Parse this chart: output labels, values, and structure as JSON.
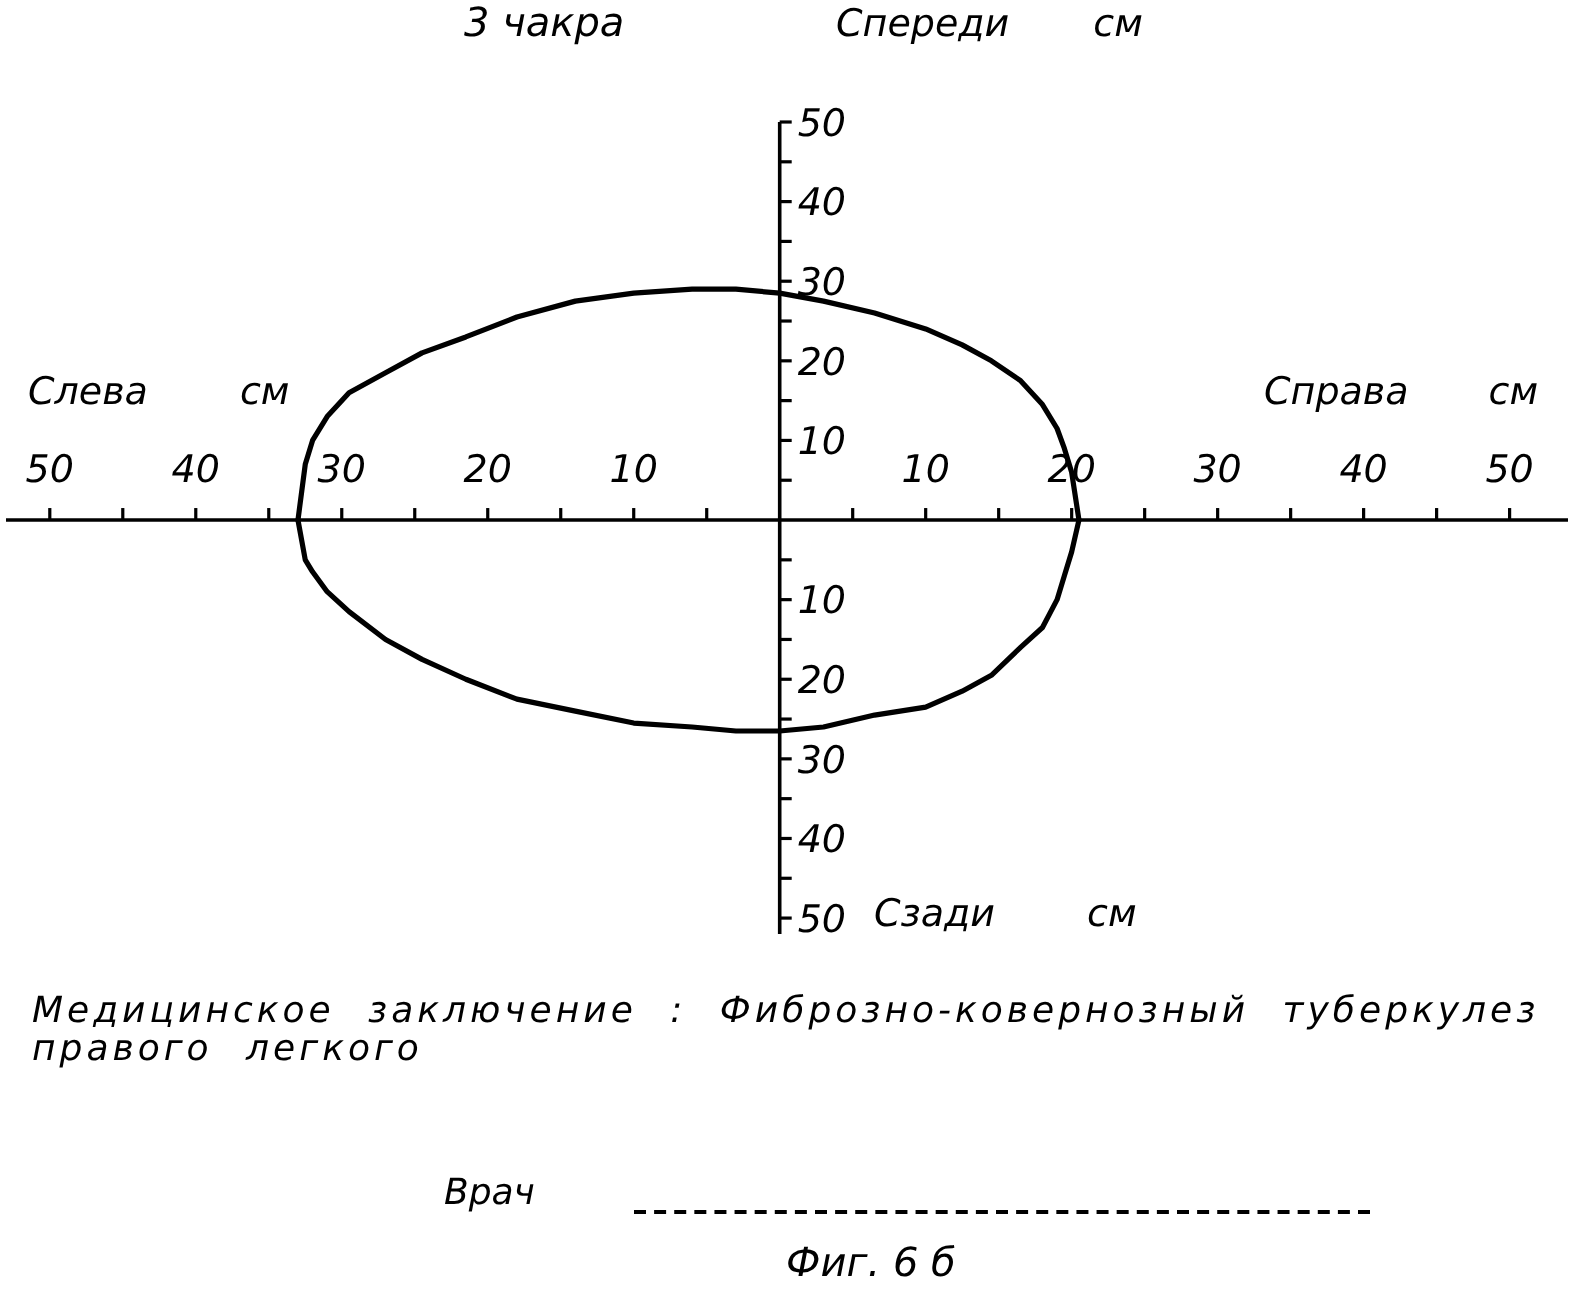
{
  "chart_data": {
    "type": "line",
    "title": "3 чакра",
    "xlabel": "Справа см",
    "ylabel": "Спереди см",
    "annotations": [
      "Слева см",
      "Сзади см",
      "Медицинское заключение : Фиброзно-ковернозный туберкулез правого легкого",
      "Врач",
      "Фиг. 6 б"
    ],
    "x": [
      -33,
      -32.5,
      -32,
      -31,
      -29.5,
      -27,
      -24.5,
      -21.5,
      -18,
      -14,
      -10,
      -6,
      -3,
      0,
      3,
      6.5,
      10,
      12.5,
      14.5,
      16.5,
      18,
      19,
      19.5,
      20,
      20.5
    ],
    "series": [
      {
        "color": "#000000",
        "values": [
          0,
          7,
          10,
          13,
          16,
          18.5,
          21,
          23,
          25.5,
          27.5,
          28.5,
          29,
          29,
          28.5,
          27.5,
          26,
          24,
          22,
          20,
          17.5,
          14.5,
          11.5,
          9,
          6,
          0
        ]
      },
      {
        "color": "#000000",
        "values": [
          0,
          -5,
          -6.5,
          -9,
          -11.5,
          -15,
          -17.5,
          -20,
          -22.5,
          -24,
          -25.5,
          -26,
          -26.5,
          -26.5,
          -26,
          -24.5,
          -23.5,
          -21.5,
          -19.5,
          -16,
          -13.5,
          -10,
          -7,
          -4,
          0
        ]
      }
    ],
    "xlim": [
      -53,
      54
    ],
    "xticks": [
      {
        "value": -50,
        "label": "50"
      },
      {
        "value": -45,
        "label": null
      },
      {
        "value": -40,
        "label": "40"
      },
      {
        "value": -35,
        "label": null
      },
      {
        "value": -30,
        "label": "30"
      },
      {
        "value": -25,
        "label": null
      },
      {
        "value": -20,
        "label": "20"
      },
      {
        "value": -15,
        "label": null
      },
      {
        "value": -10,
        "label": "10"
      },
      {
        "value": -5,
        "label": null
      },
      {
        "value": 5,
        "label": null
      },
      10,
      {
        "value": 15,
        "label": null
      },
      20,
      {
        "value": 25,
        "label": null
      },
      30,
      {
        "value": 35,
        "label": null
      },
      40,
      {
        "value": 45,
        "label": null
      },
      50
    ],
    "ylim": [
      -52,
      50
    ],
    "yticks": [
      50,
      {
        "value": 45,
        "label": null
      },
      40,
      {
        "value": 35,
        "label": null
      },
      30,
      {
        "value": 25,
        "label": null
      },
      20,
      {
        "value": 15,
        "label": null
      },
      10,
      {
        "value": 5,
        "label": null
      },
      {
        "value": -5,
        "label": null
      },
      {
        "value": -10,
        "label": "10"
      },
      {
        "value": -15,
        "label": null
      },
      {
        "value": -20,
        "label": "20"
      },
      {
        "value": -25,
        "label": null
      },
      {
        "value": -30,
        "label": "30"
      },
      {
        "value": -35,
        "label": null
      },
      {
        "value": -40,
        "label": "40"
      },
      {
        "value": -45,
        "label": null
      },
      {
        "value": -50,
        "label": "50"
      }
    ],
    "marker": "none",
    "line_style": "solid"
  }
}
